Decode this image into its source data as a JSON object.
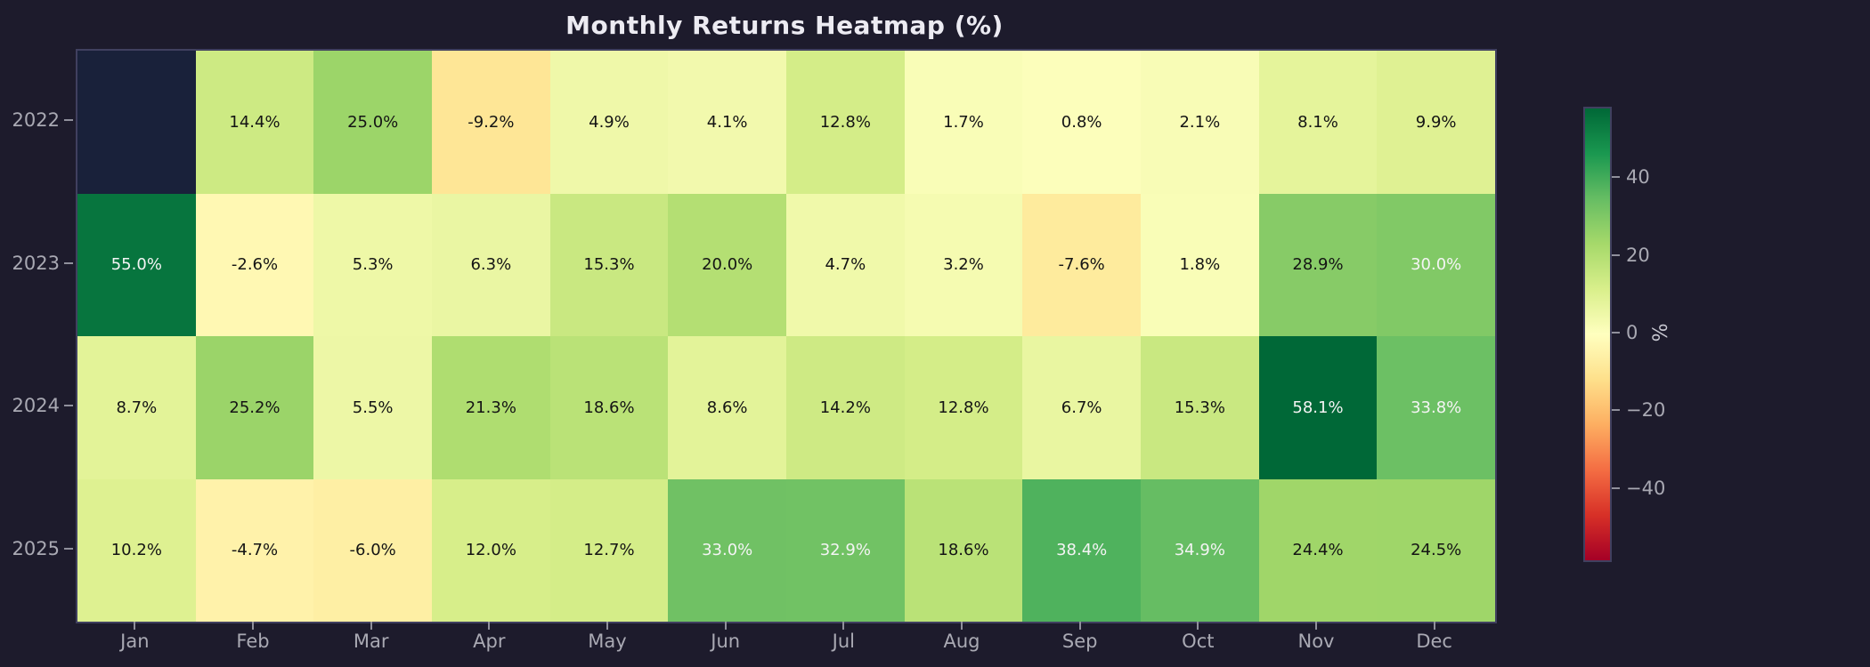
{
  "page": {
    "background_color": "#1d1b2c"
  },
  "chart_data": {
    "type": "heatmap",
    "title": "Monthly Returns Heatmap (%)",
    "rows": [
      "2022",
      "2023",
      "2024",
      "2025"
    ],
    "columns": [
      "Jan",
      "Feb",
      "Mar",
      "Apr",
      "May",
      "Jun",
      "Jul",
      "Aug",
      "Sep",
      "Oct",
      "Nov",
      "Dec"
    ],
    "values": [
      [
        null,
        14.4,
        25.0,
        -9.2,
        4.9,
        4.1,
        12.8,
        1.7,
        0.8,
        2.1,
        8.1,
        9.9
      ],
      [
        55.0,
        -2.6,
        5.3,
        6.3,
        15.3,
        20.0,
        4.7,
        3.2,
        -7.6,
        1.8,
        28.9,
        30.0
      ],
      [
        8.7,
        25.2,
        5.5,
        21.3,
        18.6,
        8.6,
        14.2,
        12.8,
        6.7,
        15.3,
        58.1,
        33.8
      ],
      [
        10.2,
        -4.7,
        -6.0,
        12.0,
        12.7,
        33.0,
        32.9,
        18.6,
        38.4,
        34.9,
        24.4,
        24.5
      ]
    ],
    "value_suffix": "%",
    "value_decimals": 1,
    "colormap": "RdYlGn",
    "vmin": -58.1,
    "vmax": 58.1,
    "white_text_abs_threshold": 30,
    "grid": false,
    "colorbar": {
      "position": "right",
      "label": "%",
      "ticks": [
        {
          "v": 40,
          "label": "40"
        },
        {
          "v": 20,
          "label": "20"
        },
        {
          "v": 0,
          "label": "0"
        },
        {
          "v": -20,
          "label": "−20"
        },
        {
          "v": -40,
          "label": "−40"
        }
      ]
    }
  },
  "colors": {
    "background": "#1d1b2c",
    "missing_cell": "#19213a",
    "plot_border": "#40405f",
    "axis_text": "#a9a9b3",
    "title_text": "#ecebf2",
    "cell_text_dark": "#141414",
    "cell_text_light": "#f4f4f4",
    "rdylgn_stops": [
      "#a50026",
      "#d73027",
      "#f46d43",
      "#fdae61",
      "#fee08b",
      "#ffffbf",
      "#d9ef8b",
      "#a6d96a",
      "#66bd63",
      "#1a9850",
      "#006837"
    ]
  }
}
